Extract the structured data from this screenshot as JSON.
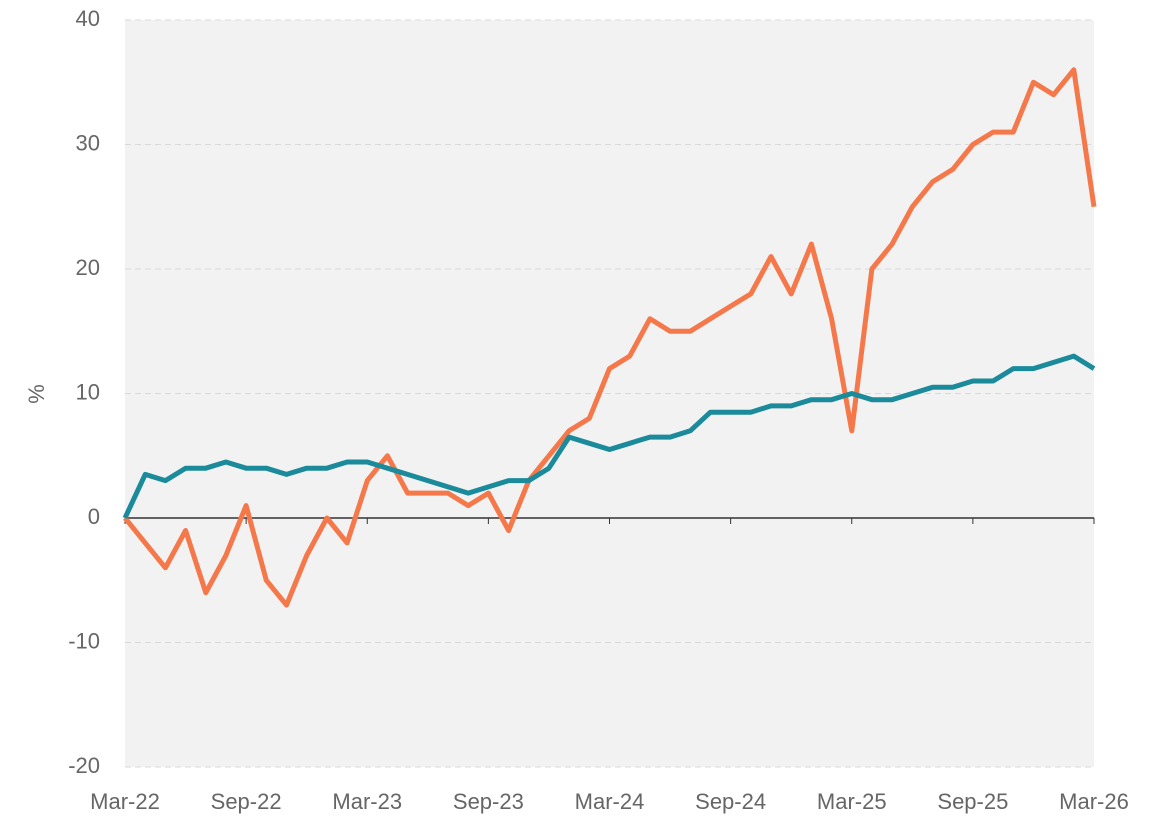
{
  "chart_data": {
    "type": "line",
    "y_label": "%",
    "x": [
      "2022-03",
      "2022-04",
      "2022-05",
      "2022-06",
      "2022-07",
      "2022-08",
      "2022-09",
      "2022-10",
      "2022-11",
      "2022-12",
      "2023-01",
      "2023-02",
      "2023-03",
      "2023-04",
      "2023-05",
      "2023-06",
      "2023-07",
      "2023-08",
      "2023-09",
      "2023-10",
      "2023-11",
      "2023-12",
      "2024-01",
      "2024-02",
      "2024-03",
      "2024-04",
      "2024-05",
      "2024-06",
      "2024-07",
      "2024-08",
      "2024-09",
      "2024-10",
      "2024-11",
      "2024-12",
      "2025-01",
      "2025-02",
      "2025-03",
      "2025-04",
      "2025-05",
      "2025-06",
      "2025-07",
      "2025-08",
      "2025-09",
      "2025-10",
      "2025-11",
      "2025-12",
      "2026-01",
      "2026-02",
      "2026-03"
    ],
    "series": [
      {
        "color": "#f5784a",
        "values": [
          0,
          -2,
          -4,
          -1,
          -6,
          -3,
          1,
          -5,
          -7,
          -3,
          0,
          -2,
          3,
          5,
          2,
          2,
          2,
          1,
          2,
          -1,
          3,
          5,
          7,
          8,
          12,
          13,
          16,
          15,
          15,
          16,
          17,
          18,
          21,
          18,
          22,
          16,
          7,
          20,
          22,
          25,
          27,
          28,
          30,
          31,
          31,
          35,
          34,
          36,
          25
        ]
      },
      {
        "color": "#1b8b9b",
        "values": [
          0,
          3.5,
          3,
          4,
          4,
          4.5,
          4,
          4,
          3.5,
          4,
          4,
          4.5,
          4.5,
          4,
          3.5,
          3,
          2.5,
          2,
          2.5,
          3,
          3,
          4,
          6.5,
          6,
          5.5,
          6,
          6.5,
          6.5,
          7,
          8.5,
          8.5,
          8.5,
          9,
          9,
          9.5,
          9.5,
          10,
          9.5,
          9.5,
          10,
          10.5,
          10.5,
          11,
          11,
          12,
          12,
          12.5,
          13,
          12
        ]
      }
    ],
    "xlim": [
      "2022-03",
      "2026-03"
    ],
    "xticks": [
      {
        "value": "2022-03",
        "label": "Mar-22"
      },
      {
        "value": "2022-09",
        "label": "Sep-22"
      },
      {
        "value": "2023-03",
        "label": "Mar-23"
      },
      {
        "value": "2023-09",
        "label": "Sep-23"
      },
      {
        "value": "2024-03",
        "label": "Mar-24"
      },
      {
        "value": "2024-09",
        "label": "Sep-24"
      },
      {
        "value": "2025-03",
        "label": "Mar-25"
      },
      {
        "value": "2025-09",
        "label": "Sep-25"
      },
      {
        "value": "2026-03",
        "label": "Mar-26"
      }
    ],
    "ylim": [
      -20,
      40
    ],
    "yticks": [
      -20,
      -10,
      0,
      10,
      20,
      30,
      40
    ],
    "grid": true
  }
}
